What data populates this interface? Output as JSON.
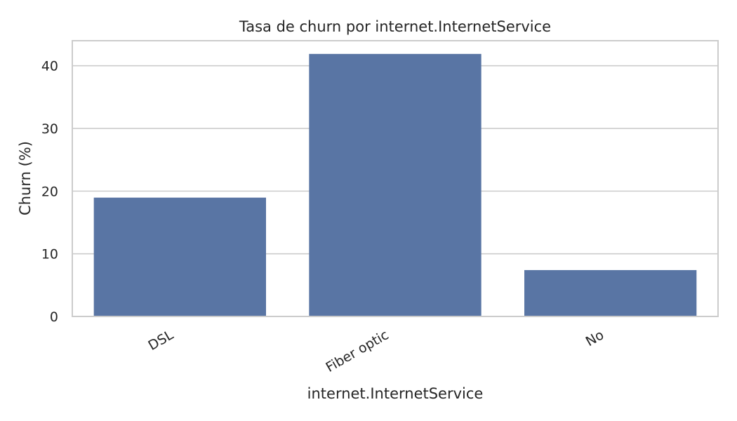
{
  "chart_data": {
    "type": "bar",
    "title": "Tasa de churn por internet.InternetService",
    "xlabel": "internet.InternetService",
    "ylabel": "Churn (%)",
    "categories": [
      "DSL",
      "Fiber optic",
      "No"
    ],
    "values": [
      18.96,
      41.89,
      7.4
    ],
    "ylim": [
      0,
      44
    ],
    "yticks": [
      0,
      10,
      20,
      30,
      40
    ],
    "grid": true,
    "bar_color": "#5975a4",
    "grid_color": "#cccccc",
    "frame_color": "#cccccc"
  }
}
